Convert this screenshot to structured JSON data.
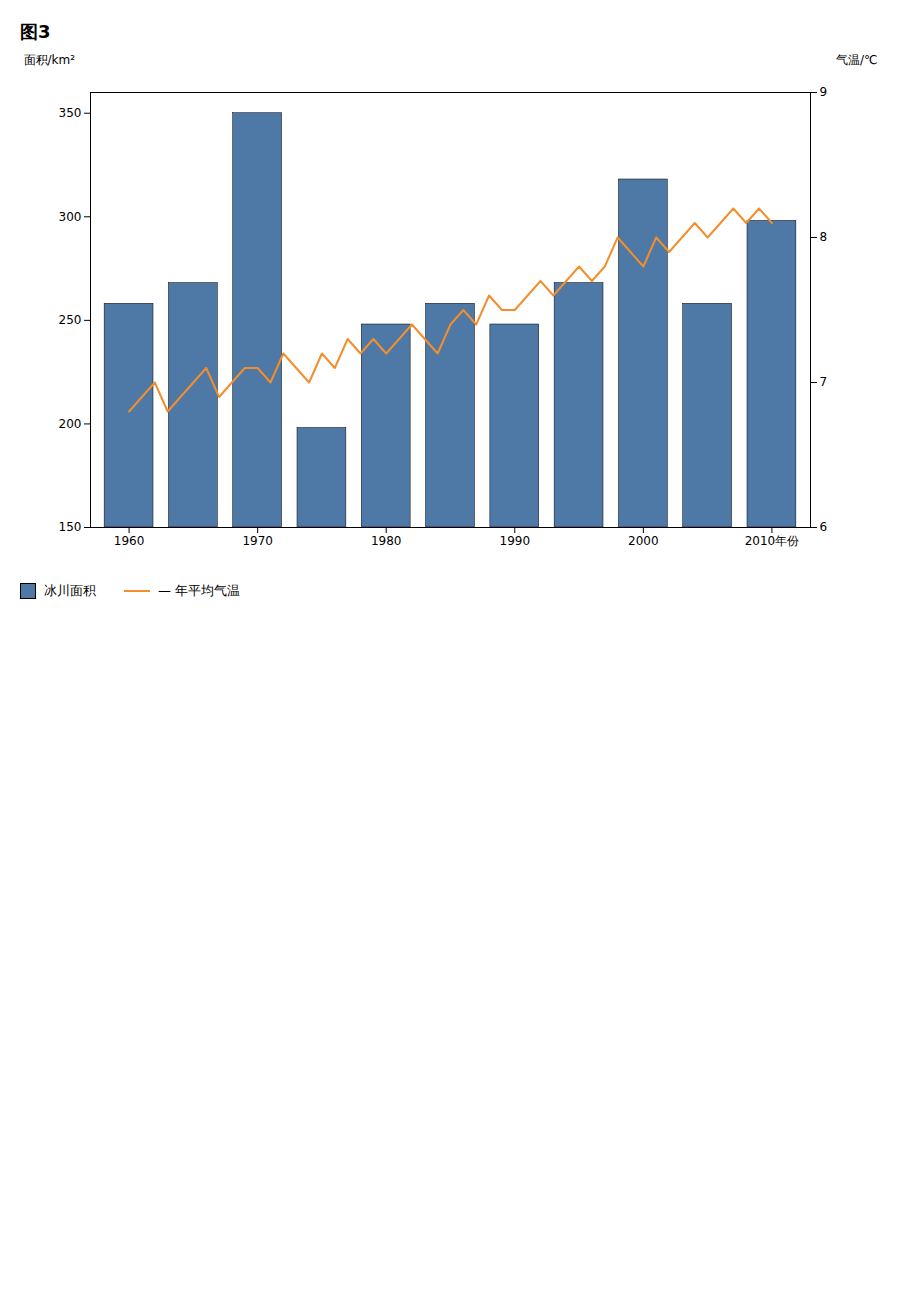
{
  "chart_data": {
    "type": "bar",
    "title": "图3",
    "xlim": [
      1957,
      2013
    ],
    "xticks": [
      1960,
      1970,
      1980,
      1990,
      2000,
      {
        "value": 2010,
        "label": "2010年份"
      }
    ],
    "ylabel": "面积/km²",
    "ylim": [
      150,
      360
    ],
    "yticks": [
      150,
      200,
      250,
      300,
      350
    ],
    "y2label": "气温/℃",
    "y2lim": [
      6,
      9
    ],
    "y2ticks": [
      6,
      7,
      8,
      9
    ],
    "grid": false,
    "legend": "bottom",
    "series": [
      {
        "name": "冰川面积",
        "type": "bar",
        "x": [
          1960,
          1965,
          1970,
          1975,
          1980,
          1985,
          1990,
          1995,
          2000,
          2005,
          2010
        ],
        "values": [
          258,
          268,
          350,
          198,
          248,
          258,
          248,
          268,
          318,
          258,
          298
        ]
      },
      {
        "name": "— 年平均气温",
        "type": "line",
        "axis": "y2",
        "x": [
          1960,
          1961,
          1962,
          1963,
          1964,
          1965,
          1966,
          1967,
          1968,
          1969,
          1970,
          1971,
          1972,
          1973,
          1974,
          1975,
          1976,
          1977,
          1978,
          1979,
          1980,
          1981,
          1982,
          1983,
          1984,
          1985,
          1986,
          1987,
          1988,
          1989,
          1990,
          1991,
          1992,
          1993,
          1994,
          1995,
          1996,
          1997,
          1998,
          1999,
          2000,
          2001,
          2002,
          2003,
          2004,
          2005,
          2006,
          2007,
          2008,
          2009,
          2010
        ],
        "values": [
          6.8,
          6.9,
          7.0,
          6.8,
          6.9,
          7.0,
          7.1,
          6.9,
          7.0,
          7.1,
          7.1,
          7.0,
          7.2,
          7.1,
          7.0,
          7.2,
          7.1,
          7.3,
          7.2,
          7.3,
          7.2,
          7.3,
          7.4,
          7.3,
          7.2,
          7.4,
          7.5,
          7.4,
          7.6,
          7.5,
          7.5,
          7.6,
          7.7,
          7.6,
          7.7,
          7.8,
          7.7,
          7.8,
          8.0,
          7.9,
          7.8,
          8.0,
          7.9,
          8.0,
          8.1,
          8.0,
          8.1,
          8.2,
          8.1,
          8.2,
          8.1
        ]
      }
    ]
  }
}
